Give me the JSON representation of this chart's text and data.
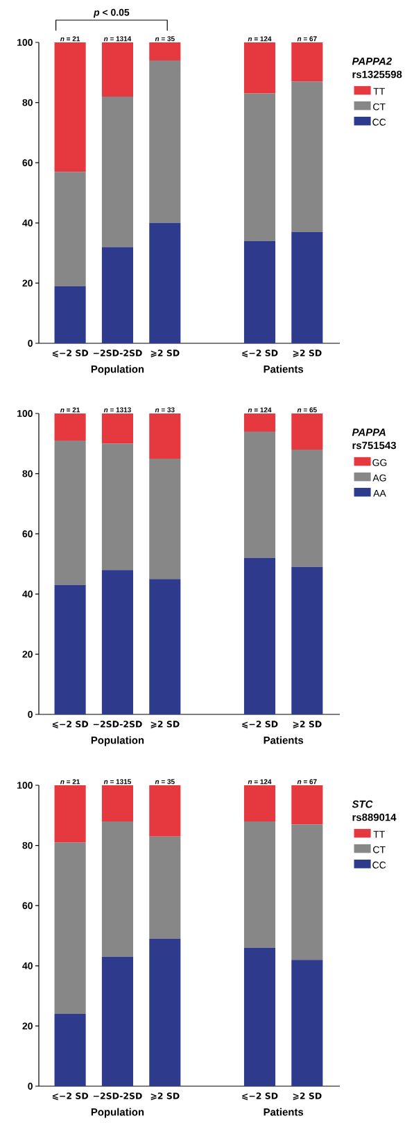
{
  "chart_data": [
    {
      "type": "bar",
      "stacked": true,
      "legend_title": "*PAPPA2* rs1325598",
      "legend": "right",
      "categories": [
        "⩽−2 SD",
        "−2SD-2SD",
        "⩾2 SD",
        null,
        "⩽−2 SD",
        "⩾2 SD"
      ],
      "series": [
        {
          "name": "CC",
          "color": "#2e3a8c",
          "values": [
            19,
            32,
            40,
            null,
            34,
            37
          ]
        },
        {
          "name": "CT",
          "color": "#878787",
          "values": [
            38,
            50,
            54,
            null,
            49,
            50
          ]
        },
        {
          "name": "TT",
          "color": "#e5393f",
          "values": [
            43,
            18,
            6,
            null,
            17,
            13
          ]
        }
      ],
      "ylim": [
        0,
        100
      ],
      "yticks": [
        0,
        20,
        40,
        60,
        80,
        100
      ],
      "annotations": [
        "Population",
        "Patients",
        "*n* = 21",
        "*n* = 1314",
        "*n* = 35",
        "*n* = 124",
        "*n* = 67",
        "*p* < 0.05"
      ]
    },
    {
      "type": "bar",
      "stacked": true,
      "legend_title": "*PAPPA* rs751543",
      "legend": "right",
      "categories": [
        "⩽−2 SD",
        "−2SD-2SD",
        "⩾2 SD",
        null,
        "⩽−2 SD",
        "⩾2 SD"
      ],
      "series": [
        {
          "name": "AA",
          "color": "#2e3a8c",
          "values": [
            43,
            48,
            45,
            null,
            52,
            49
          ]
        },
        {
          "name": "AG",
          "color": "#878787",
          "values": [
            48,
            42,
            40,
            null,
            42,
            39
          ]
        },
        {
          "name": "GG",
          "color": "#e5393f",
          "values": [
            9,
            10,
            15,
            null,
            6,
            12
          ]
        }
      ],
      "ylim": [
        0,
        100
      ],
      "yticks": [
        0,
        20,
        40,
        60,
        80,
        100
      ],
      "annotations": [
        "Population",
        "Patients",
        "*n* = 21",
        "*n* = 1313",
        "*n* = 33",
        "*n* = 124",
        "*n* = 65"
      ]
    },
    {
      "type": "bar",
      "stacked": true,
      "legend_title": "*STC* rs889014",
      "legend": "right",
      "categories": [
        "⩽−2 SD",
        "−2SD-2SD",
        "⩾2 SD",
        null,
        "⩽−2 SD",
        "⩾2 SD"
      ],
      "series": [
        {
          "name": "CC",
          "color": "#2e3a8c",
          "values": [
            24,
            43,
            49,
            null,
            46,
            42
          ]
        },
        {
          "name": "CT",
          "color": "#878787",
          "values": [
            57,
            45,
            34,
            null,
            42,
            45
          ]
        },
        {
          "name": "TT",
          "color": "#e5393f",
          "values": [
            19,
            12,
            17,
            null,
            12,
            13
          ]
        }
      ],
      "ylim": [
        0,
        100
      ],
      "yticks": [
        0,
        20,
        40,
        60,
        80,
        100
      ],
      "annotations": [
        "Population",
        "Patients",
        "*n* = 21",
        "*n* = 1315",
        "*n* = 35",
        "*n* = 124",
        "*n* = 67"
      ]
    }
  ]
}
